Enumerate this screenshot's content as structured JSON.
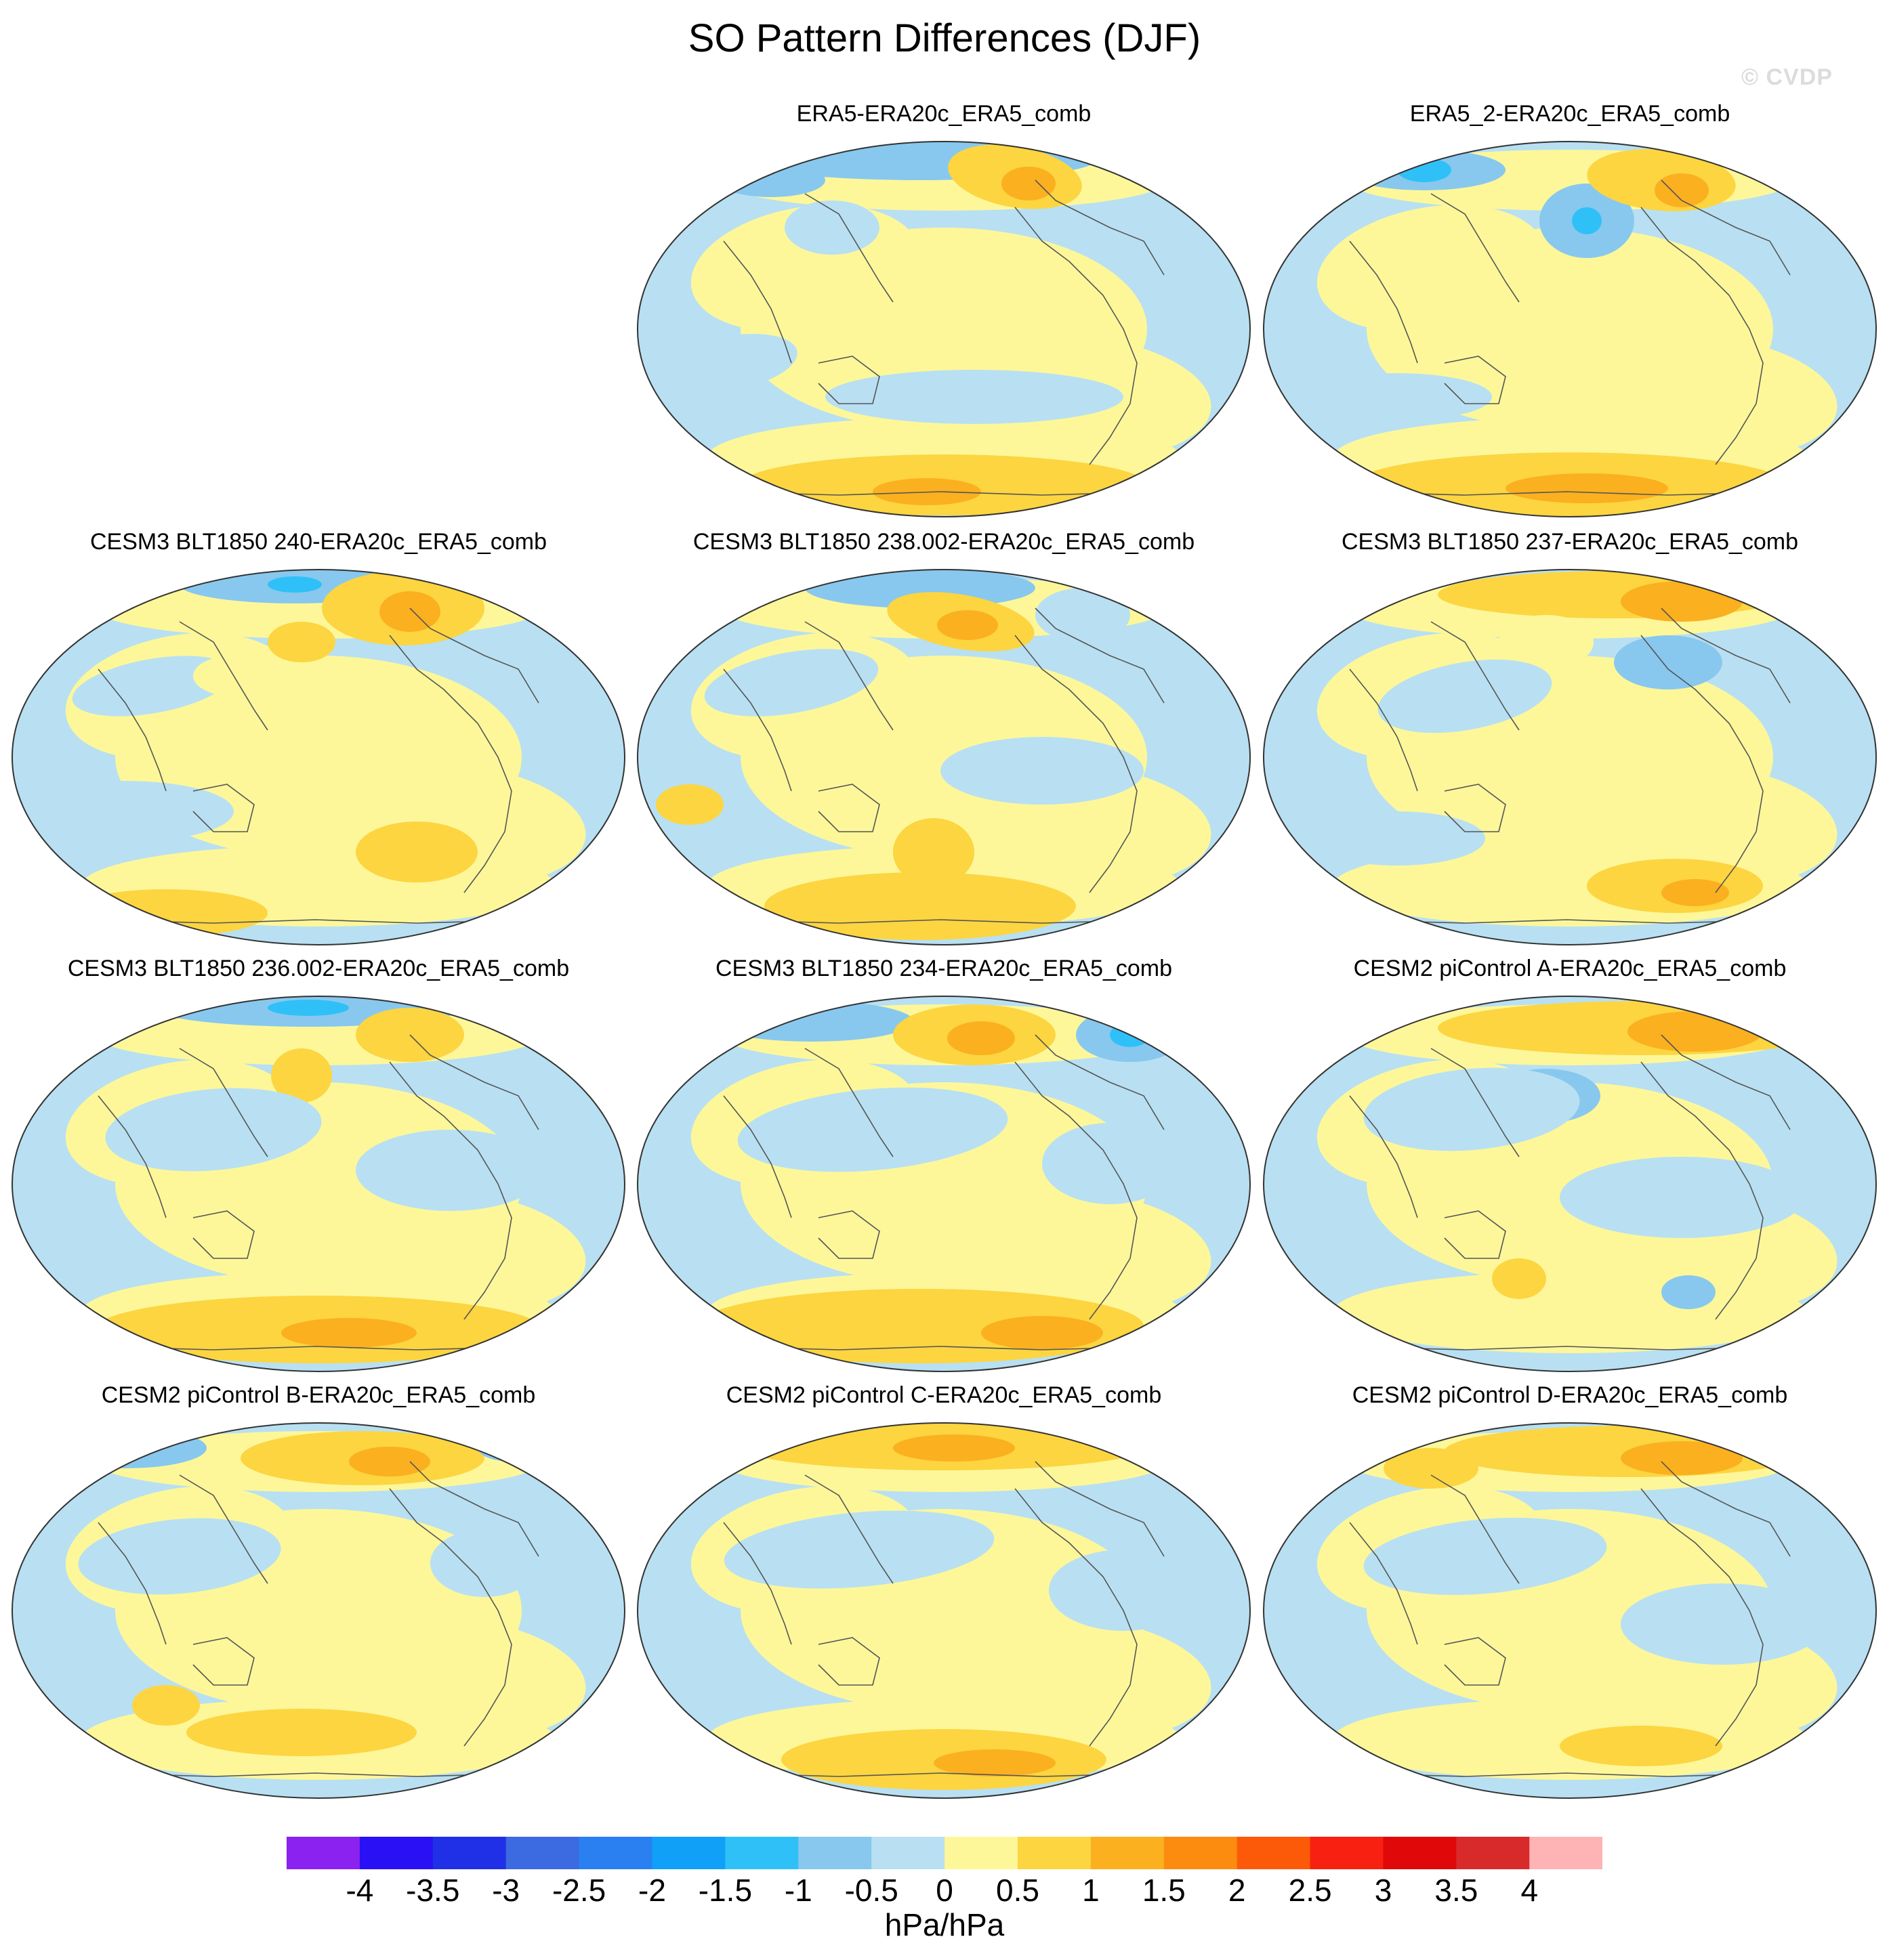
{
  "figure": {
    "title": "SO Pattern Differences (DJF)",
    "watermark": "© CVDP"
  },
  "panels": [
    {
      "label": "ERA5-ERA20c_ERA5_comb"
    },
    {
      "label": "ERA5_2-ERA20c_ERA5_comb"
    },
    {
      "label": "CESM3 BLT1850 240-ERA20c_ERA5_comb"
    },
    {
      "label": "CESM3 BLT1850 238.002-ERA20c_ERA5_comb"
    },
    {
      "label": "CESM3 BLT1850 237-ERA20c_ERA5_comb"
    },
    {
      "label": "CESM3 BLT1850 236.002-ERA20c_ERA5_comb"
    },
    {
      "label": "CESM3 BLT1850 234-ERA20c_ERA5_comb"
    },
    {
      "label": "CESM2 piControl A-ERA20c_ERA5_comb"
    },
    {
      "label": "CESM2 piControl B-ERA20c_ERA5_comb"
    },
    {
      "label": "CESM2 piControl C-ERA20c_ERA5_comb"
    },
    {
      "label": "CESM2 piControl D-ERA20c_ERA5_comb"
    }
  ],
  "colorbar": {
    "units": "hPa/hPa",
    "ticks": [
      "-4",
      "-3.5",
      "-3",
      "-2.5",
      "-2",
      "-1.5",
      "-1",
      "-0.5",
      "0",
      "0.5",
      "1",
      "1.5",
      "2",
      "2.5",
      "3",
      "3.5",
      "4"
    ],
    "colors": [
      "#8b22f0",
      "#2a10f5",
      "#2030e6",
      "#3c6ae0",
      "#2a80f0",
      "#10a0f8",
      "#30c0f8",
      "#88c8ee",
      "#b8e0f2",
      "#fdf79a",
      "#fcd540",
      "#fbb020",
      "#fc8c10",
      "#fc5a08",
      "#f82010",
      "#e00808",
      "#d82a2a",
      "#feb4b4"
    ]
  },
  "palette": {
    "ocean_neg": "#b8e0f2",
    "neg_mid": "#88c8ee",
    "neg_strong": "#30c0f8",
    "pos_weak": "#fdf79a",
    "pos_mid": "#fcd540",
    "pos_strong": "#fbb020",
    "coast": "#555555"
  }
}
